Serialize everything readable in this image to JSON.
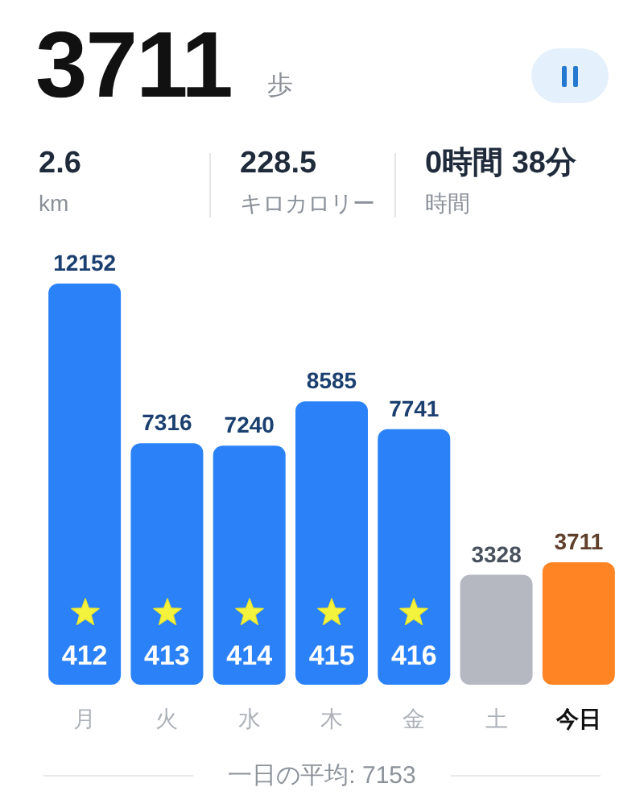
{
  "chart_data": {
    "type": "bar",
    "title": "3711 歩",
    "categories": [
      "月",
      "火",
      "水",
      "木",
      "金",
      "土",
      "今日"
    ],
    "values": [
      12152,
      7316,
      7240,
      8585,
      7741,
      3328,
      3711
    ],
    "colors": [
      "#2b82f8",
      "#2b82f8",
      "#2b82f8",
      "#2b82f8",
      "#2b82f8",
      "#b5b8c1",
      "#ff8424"
    ],
    "data_labels": true,
    "annotations": [
      "2.6",
      "km",
      "228.5",
      "キロカロリー",
      "0時間 38分",
      "時間",
      "412",
      "413",
      "414",
      "415",
      "416",
      "一日の平均: 7153"
    ]
  }
}
